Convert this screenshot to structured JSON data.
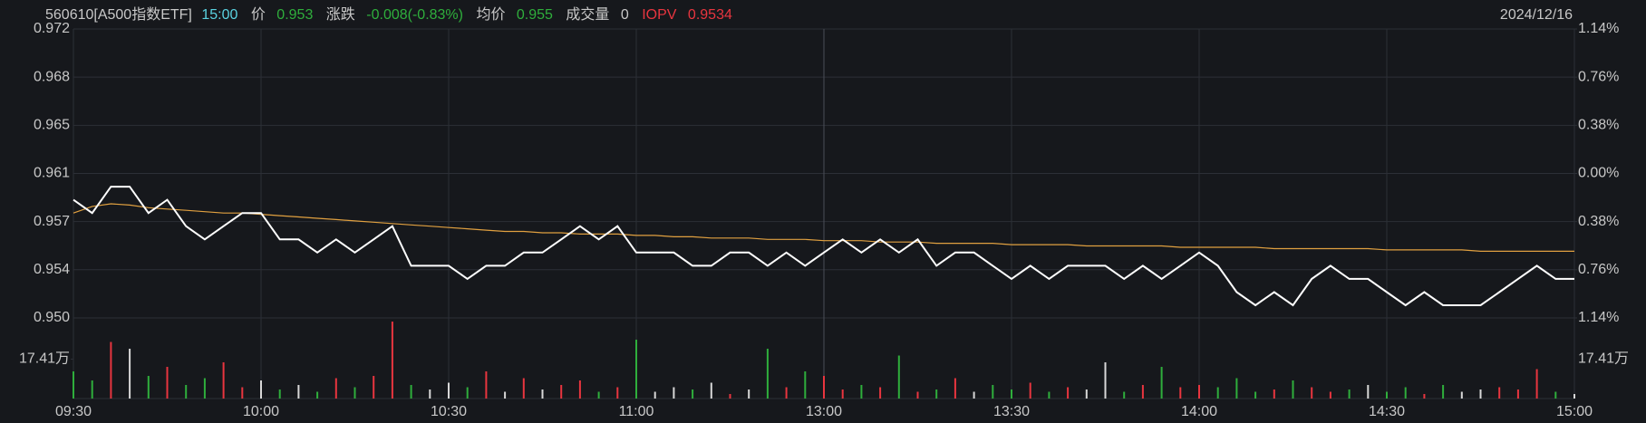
{
  "header": {
    "code": "560610[A500指数ETF]",
    "time": "15:00",
    "price_label": "价",
    "price": 0.953,
    "change_label": "涨跌",
    "change": "-0.008(-0.83%)",
    "avg_label": "均价",
    "avg": 0.955,
    "volume_label": "成交量",
    "volume": 0,
    "iopv_label": "IOPV",
    "iopv": 0.9534,
    "date": "2024/12/16"
  },
  "chart_data": {
    "type": "line",
    "xticks": [
      "09:30",
      "10:00",
      "10:30",
      "11:00",
      "13:00",
      "13:30",
      "14:00",
      "14:30",
      "15:00"
    ],
    "ylim": [
      0.95004,
      0.97196
    ],
    "yticks": [
      {
        "value": 0.97196,
        "label": "0.972"
      },
      {
        "value": 0.96831,
        "label": "0.968"
      },
      {
        "value": 0.96465,
        "label": "0.965"
      },
      0.961,
      {
        "value": 0.95735,
        "label": "0.957"
      },
      {
        "value": 0.9537,
        "label": "0.954"
      },
      {
        "value": 0.95004,
        "label": "0.950"
      }
    ],
    "y2lim": [
      -1.14,
      1.14
    ],
    "y2ticks": [
      {
        "value": 1.14,
        "label": "1.14%"
      },
      {
        "value": 0.76,
        "label": "0.76%"
      },
      {
        "value": 0.38,
        "label": "0.38%"
      },
      {
        "value": 0,
        "label": "0.00%"
      },
      {
        "value": -0.38,
        "label": "0.38%"
      },
      {
        "value": -0.76,
        "label": "0.76%"
      },
      {
        "value": -1.14,
        "label": "1.14%"
      }
    ],
    "reference": 0.961,
    "up_color": "#e8353f",
    "down_color": "#2fae3c",
    "flat_color": "#d8d8d8",
    "series": [
      {
        "name": "价",
        "color": "#ffffff",
        "values": [
          0.959,
          0.958,
          0.96,
          0.96,
          0.958,
          0.959,
          0.957,
          0.956,
          0.957,
          0.958,
          0.958,
          0.956,
          0.956,
          0.955,
          0.956,
          0.955,
          0.956,
          0.957,
          0.954,
          0.954,
          0.954,
          0.953,
          0.954,
          0.954,
          0.955,
          0.955,
          0.956,
          0.957,
          0.956,
          0.957,
          0.955,
          0.955,
          0.955,
          0.954,
          0.954,
          0.955,
          0.955,
          0.954,
          0.955,
          0.954,
          0.955,
          0.956,
          0.955,
          0.956,
          0.955,
          0.956,
          0.954,
          0.955,
          0.955,
          0.954,
          0.953,
          0.954,
          0.953,
          0.954,
          0.954,
          0.954,
          0.953,
          0.954,
          0.953,
          0.954,
          0.955,
          0.954,
          0.952,
          0.951,
          0.952,
          0.951,
          0.953,
          0.954,
          0.953,
          0.953,
          0.952,
          0.951,
          0.952,
          0.951,
          0.951,
          0.951,
          0.952,
          0.953,
          0.954,
          0.953,
          0.953
        ]
      },
      {
        "name": "均价",
        "color": "#e0a040",
        "values": [
          0.958,
          0.9585,
          0.9587,
          0.9586,
          0.9584,
          0.9583,
          0.9582,
          0.9581,
          0.958,
          0.958,
          0.9579,
          0.9578,
          0.9577,
          0.9576,
          0.9575,
          0.9574,
          0.9573,
          0.9572,
          0.9571,
          0.957,
          0.9569,
          0.9568,
          0.9567,
          0.9566,
          0.9566,
          0.9565,
          0.9565,
          0.9564,
          0.9564,
          0.9564,
          0.9563,
          0.9563,
          0.9562,
          0.9562,
          0.9561,
          0.9561,
          0.9561,
          0.956,
          0.956,
          0.956,
          0.9559,
          0.9559,
          0.9559,
          0.9558,
          0.9558,
          0.9558,
          0.9557,
          0.9557,
          0.9557,
          0.9557,
          0.9556,
          0.9556,
          0.9556,
          0.9556,
          0.9555,
          0.9555,
          0.9555,
          0.9555,
          0.9555,
          0.9554,
          0.9554,
          0.9554,
          0.9554,
          0.9554,
          0.9553,
          0.9553,
          0.9553,
          0.9553,
          0.9553,
          0.9553,
          0.9552,
          0.9552,
          0.9552,
          0.9552,
          0.9552,
          0.9551,
          0.9551,
          0.9551,
          0.9551,
          0.9551,
          0.9551
        ]
      }
    ],
    "volume": {
      "ylim": [
        0,
        34.82
      ],
      "yticks": [
        {
          "value": 17.41,
          "label": "17.41万"
        }
      ],
      "values": [
        12,
        8,
        25,
        22,
        10,
        14,
        6,
        9,
        16,
        5,
        8,
        4,
        6,
        3,
        9,
        5,
        10,
        34,
        6,
        4,
        7,
        5,
        12,
        3,
        9,
        4,
        6,
        8,
        3,
        5,
        26,
        3,
        5,
        4,
        7,
        2,
        4,
        22,
        5,
        12,
        10,
        4,
        6,
        5,
        19,
        3,
        4,
        9,
        3,
        6,
        4,
        7,
        3,
        5,
        4,
        16,
        3,
        6,
        14,
        5,
        6,
        5,
        9,
        3,
        4,
        8,
        5,
        3,
        4,
        6,
        3,
        5,
        2,
        6,
        3,
        4,
        5,
        4,
        13,
        3,
        2
      ]
    }
  }
}
